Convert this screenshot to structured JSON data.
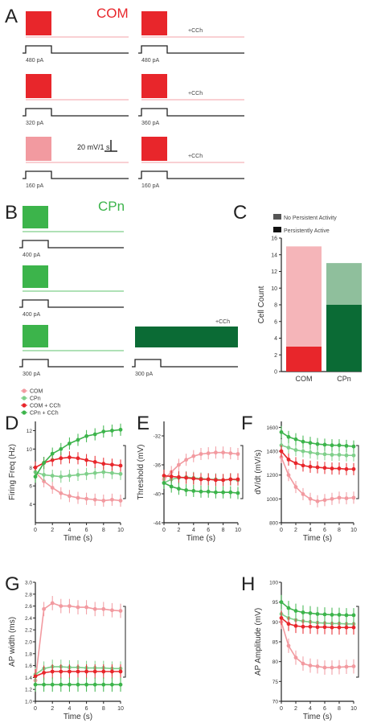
{
  "colors": {
    "red": "#e8262b",
    "red_light": "#f29aa0",
    "red_pink": "#f5b5b9",
    "green": "#3cb44b",
    "green_light": "#7fcf8a",
    "green_dark": "#0b6b35",
    "green_mid": "#8fbf9c",
    "black": "#222222",
    "gray": "#555555"
  },
  "panel_a": {
    "letter": "A",
    "title": "COM",
    "traces": [
      {
        "col": 0,
        "row": 0,
        "stim": "480 pA",
        "drug": ""
      },
      {
        "col": 1,
        "row": 0,
        "stim": "480 pA",
        "drug": "+CCh"
      },
      {
        "col": 0,
        "row": 1,
        "stim": "320 pA",
        "drug": ""
      },
      {
        "col": 1,
        "row": 1,
        "stim": "360 pA",
        "drug": "+CCh"
      },
      {
        "col": 0,
        "row": 2,
        "stim": "160 pA",
        "drug": ""
      },
      {
        "col": 1,
        "row": 2,
        "stim": "160 pA",
        "drug": "+CCh"
      }
    ],
    "scale_label": "20 mV/1 s"
  },
  "panel_b": {
    "letter": "B",
    "title": "CPn",
    "traces": [
      {
        "row": 0,
        "stim": "400 pA"
      },
      {
        "row": 1,
        "stim": "400 pA"
      },
      {
        "row": 2,
        "stim": "300 pA"
      }
    ],
    "persistent_stim": "300 pA",
    "persistent_drug": "+CCh"
  },
  "panel_c": {
    "letter": "C",
    "legend": [
      "No Persistent Activity",
      "Persistently Active"
    ],
    "ylabel": "Cell Count",
    "yticks": [
      "0",
      "2",
      "4",
      "6",
      "8",
      "10",
      "12",
      "14",
      "16"
    ],
    "categories": [
      "COM",
      "CPn"
    ]
  },
  "legend_d": [
    "COM",
    "CPn",
    "COM + CCh",
    "CPn + CCh"
  ],
  "chart_data": [
    {
      "id": "C",
      "type": "bar",
      "stacked": true,
      "categories": [
        "COM",
        "CPn"
      ],
      "series": [
        {
          "name": "Persistently Active",
          "values": [
            3,
            8
          ]
        },
        {
          "name": "No Persistent Activity",
          "values": [
            12,
            5
          ]
        }
      ],
      "ylabel": "Cell Count",
      "ylim": [
        0,
        16
      ]
    },
    {
      "id": "D",
      "type": "line",
      "title": "",
      "xlabel": "Time (s)",
      "ylabel": "Firing Freq (Hz)",
      "xlim": [
        0,
        10
      ],
      "ylim": [
        2,
        13
      ],
      "x": [
        0,
        1,
        2,
        3,
        4,
        5,
        6,
        7,
        8,
        9,
        10
      ],
      "series": [
        {
          "name": "COM",
          "values": [
            7.5,
            6.5,
            5.8,
            5.2,
            4.9,
            4.7,
            4.6,
            4.5,
            4.4,
            4.5,
            4.4
          ]
        },
        {
          "name": "CPn",
          "values": [
            7.5,
            7.2,
            7.1,
            7.0,
            7.1,
            7.2,
            7.3,
            7.4,
            7.5,
            7.4,
            7.3
          ]
        },
        {
          "name": "COM + CCh",
          "values": [
            8.0,
            8.5,
            8.8,
            9.0,
            9.1,
            9.0,
            8.8,
            8.6,
            8.4,
            8.3,
            8.2
          ]
        },
        {
          "name": "CPn + CCh",
          "values": [
            7.0,
            8.5,
            9.5,
            10.0,
            10.6,
            11.0,
            11.4,
            11.6,
            11.9,
            12.0,
            12.1
          ]
        }
      ],
      "xticks": [
        "0",
        "2",
        "4",
        "6",
        "8",
        "10"
      ],
      "yticks": [
        "4",
        "6",
        "8",
        "10",
        "12"
      ],
      "tick_vals": [
        4,
        6,
        8,
        10,
        12
      ]
    },
    {
      "id": "E",
      "type": "line",
      "title": "",
      "xlabel": "Time (s)",
      "ylabel": "Threshold (mV)",
      "xlim": [
        0,
        10
      ],
      "ylim": [
        -44,
        -30
      ],
      "x": [
        0,
        1,
        2,
        3,
        4,
        5,
        6,
        7,
        8,
        9,
        10
      ],
      "series": [
        {
          "name": "COM",
          "values": [
            -38.0,
            -37.0,
            -36.0,
            -35.3,
            -34.8,
            -34.5,
            -34.4,
            -34.3,
            -34.3,
            -34.4,
            -34.5
          ]
        },
        {
          "name": "CPn",
          "values": [
            -38.5,
            -38.0,
            -37.8,
            -37.7,
            -37.8,
            -37.9,
            -38.0,
            -38.0,
            -38.1,
            -38.0,
            -38.1
          ]
        },
        {
          "name": "COM + CCh",
          "values": [
            -37.5,
            -37.6,
            -37.7,
            -37.8,
            -37.9,
            -38.0,
            -38.0,
            -38.1,
            -38.1,
            -38.0,
            -38.0
          ]
        },
        {
          "name": "CPn + CCh",
          "values": [
            -38.5,
            -39.0,
            -39.3,
            -39.5,
            -39.6,
            -39.7,
            -39.7,
            -39.8,
            -39.8,
            -39.8,
            -39.9
          ]
        }
      ],
      "xticks": [
        "0",
        "2",
        "4",
        "6",
        "8",
        "10"
      ],
      "yticks": [
        "-44",
        "-40",
        "-36",
        "-32"
      ],
      "tick_vals": [
        -44,
        -40,
        -36,
        -32
      ]
    },
    {
      "id": "F",
      "type": "line",
      "title": "",
      "xlabel": "Time (s)",
      "ylabel": "dV/dt (mV/s)",
      "xlim": [
        0,
        10
      ],
      "ylim": [
        800,
        1650
      ],
      "x": [
        0,
        1,
        2,
        3,
        4,
        5,
        6,
        7,
        8,
        9,
        10
      ],
      "series": [
        {
          "name": "COM",
          "values": [
            1350,
            1200,
            1100,
            1040,
            1000,
            980,
            990,
            1000,
            1010,
            1005,
            1010
          ]
        },
        {
          "name": "CPn",
          "values": [
            1450,
            1430,
            1410,
            1400,
            1390,
            1380,
            1375,
            1370,
            1370,
            1365,
            1365
          ]
        },
        {
          "name": "COM + CCh",
          "values": [
            1400,
            1330,
            1300,
            1280,
            1270,
            1265,
            1260,
            1255,
            1255,
            1250,
            1250
          ]
        },
        {
          "name": "CPn + CCh",
          "values": [
            1560,
            1520,
            1500,
            1480,
            1470,
            1460,
            1455,
            1450,
            1450,
            1445,
            1440
          ]
        }
      ],
      "xticks": [
        "0",
        "2",
        "4",
        "6",
        "8",
        "10"
      ],
      "yticks": [
        "1600",
        "1400",
        "1200",
        "1000",
        "800"
      ],
      "tick_vals": [
        1600,
        1400,
        1200,
        1000,
        800
      ]
    },
    {
      "id": "G",
      "type": "line",
      "title": "",
      "xlabel": "Time (s)",
      "ylabel": "AP width (ms)",
      "xlim": [
        0,
        10
      ],
      "ylim": [
        1.0,
        3.0
      ],
      "x": [
        0,
        1,
        2,
        3,
        4,
        5,
        6,
        7,
        8,
        9,
        10
      ],
      "series": [
        {
          "name": "COM",
          "values": [
            1.35,
            2.55,
            2.65,
            2.6,
            2.6,
            2.58,
            2.58,
            2.55,
            2.55,
            2.53,
            2.52
          ]
        },
        {
          "name": "CPn",
          "values": [
            1.45,
            1.55,
            1.58,
            1.58,
            1.57,
            1.57,
            1.56,
            1.56,
            1.56,
            1.55,
            1.55
          ]
        },
        {
          "name": "COM + CCh",
          "values": [
            1.42,
            1.48,
            1.5,
            1.5,
            1.5,
            1.5,
            1.5,
            1.5,
            1.5,
            1.5,
            1.5
          ]
        },
        {
          "name": "CPn + CCh",
          "values": [
            1.28,
            1.28,
            1.28,
            1.28,
            1.28,
            1.28,
            1.28,
            1.28,
            1.28,
            1.28,
            1.28
          ]
        }
      ],
      "xticks": [
        "0",
        "2",
        "4",
        "6",
        "8",
        "10"
      ],
      "yticks": [
        "1.0",
        "1.2",
        "1.4",
        "1.6",
        "1.8",
        "2.0",
        "2.2",
        "2.4",
        "2.6",
        "2.8",
        "3.0"
      ],
      "tick_vals": [
        1.0,
        1.2,
        1.4,
        1.6,
        1.8,
        2.0,
        2.2,
        2.4,
        2.6,
        2.8,
        3.0
      ]
    },
    {
      "id": "H",
      "type": "line",
      "title": "",
      "xlabel": "Time (s)",
      "ylabel": "AP Amplitude (mV)",
      "xlim": [
        0,
        10
      ],
      "ylim": [
        70,
        100
      ],
      "x": [
        0,
        1,
        2,
        3,
        4,
        5,
        6,
        7,
        8,
        9,
        10
      ],
      "series": [
        {
          "name": "COM",
          "values": [
            90,
            84,
            81,
            79.5,
            79,
            78.8,
            78.5,
            78.5,
            78.6,
            78.7,
            78.8
          ]
        },
        {
          "name": "CPn",
          "values": [
            92,
            91,
            90.5,
            90.2,
            90,
            89.8,
            89.7,
            89.6,
            89.6,
            89.5,
            89.5
          ]
        },
        {
          "name": "COM + CCh",
          "values": [
            91,
            89.5,
            89,
            88.8,
            88.8,
            88.7,
            88.7,
            88.6,
            88.6,
            88.6,
            88.6
          ]
        },
        {
          "name": "CPn + CCh",
          "values": [
            95,
            93.5,
            92.8,
            92.4,
            92.2,
            92,
            91.9,
            91.8,
            91.8,
            91.7,
            91.7
          ]
        }
      ],
      "xticks": [
        "0",
        "2",
        "4",
        "6",
        "8",
        "10"
      ],
      "yticks": [
        "70",
        "75",
        "80",
        "85",
        "90",
        "95",
        "100"
      ],
      "tick_vals": [
        70,
        75,
        80,
        85,
        90,
        95,
        100
      ]
    }
  ]
}
